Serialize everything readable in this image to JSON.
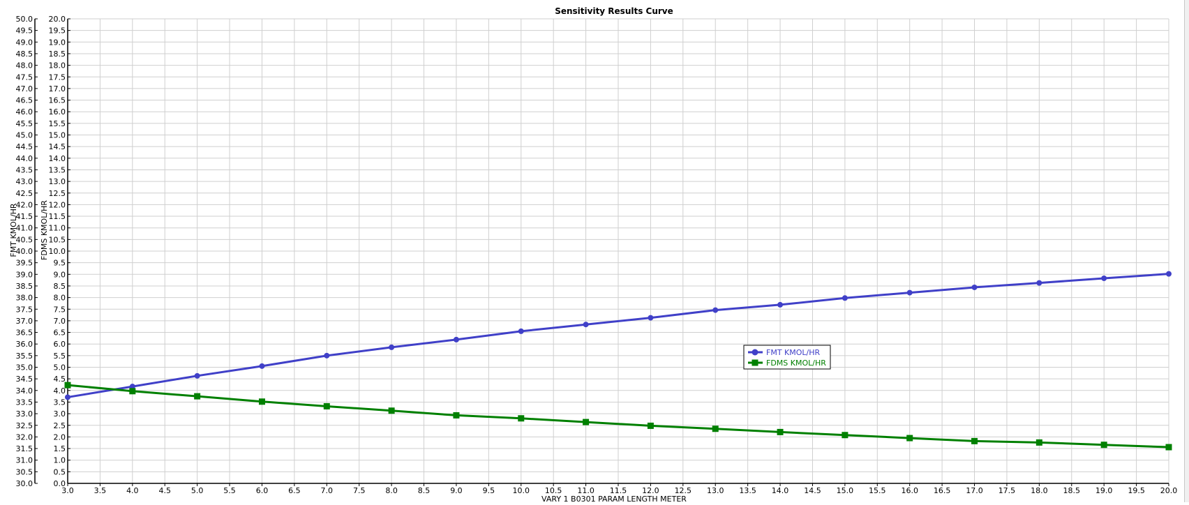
{
  "chart_data": {
    "type": "line",
    "title": "Sensitivity Results Curve",
    "xlabel": "VARY 1 B0301 PARAM LENGTH METER",
    "xlim": [
      3.0,
      20.0
    ],
    "x_ticks_step": 0.5,
    "y_axes": [
      {
        "label": "FMT KMOL/HR",
        "ylim": [
          30.0,
          50.0
        ],
        "tick_step": 0.5
      },
      {
        "label": "FDMS KMOL/HR",
        "ylim": [
          0.0,
          20.0
        ],
        "tick_step": 0.5
      }
    ],
    "grid": true,
    "legend_position": "center-right",
    "x": [
      3,
      4,
      5,
      6,
      7,
      8,
      9,
      10,
      11,
      12,
      13,
      14,
      15,
      16,
      17,
      18,
      19,
      20
    ],
    "series": [
      {
        "name": "FMT KMOL/HR",
        "axis": 0,
        "color": "#4040c8",
        "marker": "circle",
        "values": [
          33.71,
          34.17,
          34.63,
          35.05,
          35.5,
          35.86,
          36.19,
          36.55,
          36.84,
          37.13,
          37.46,
          37.69,
          37.98,
          38.21,
          38.44,
          38.63,
          38.83,
          39.02
        ]
      },
      {
        "name": "FDMS KMOL/HR",
        "axis": 1,
        "color": "#008000",
        "marker": "square",
        "values": [
          4.23,
          3.97,
          3.75,
          3.52,
          3.32,
          3.13,
          2.93,
          2.8,
          2.64,
          2.48,
          2.35,
          2.21,
          2.08,
          1.95,
          1.82,
          1.76,
          1.66,
          1.56
        ]
      }
    ]
  }
}
